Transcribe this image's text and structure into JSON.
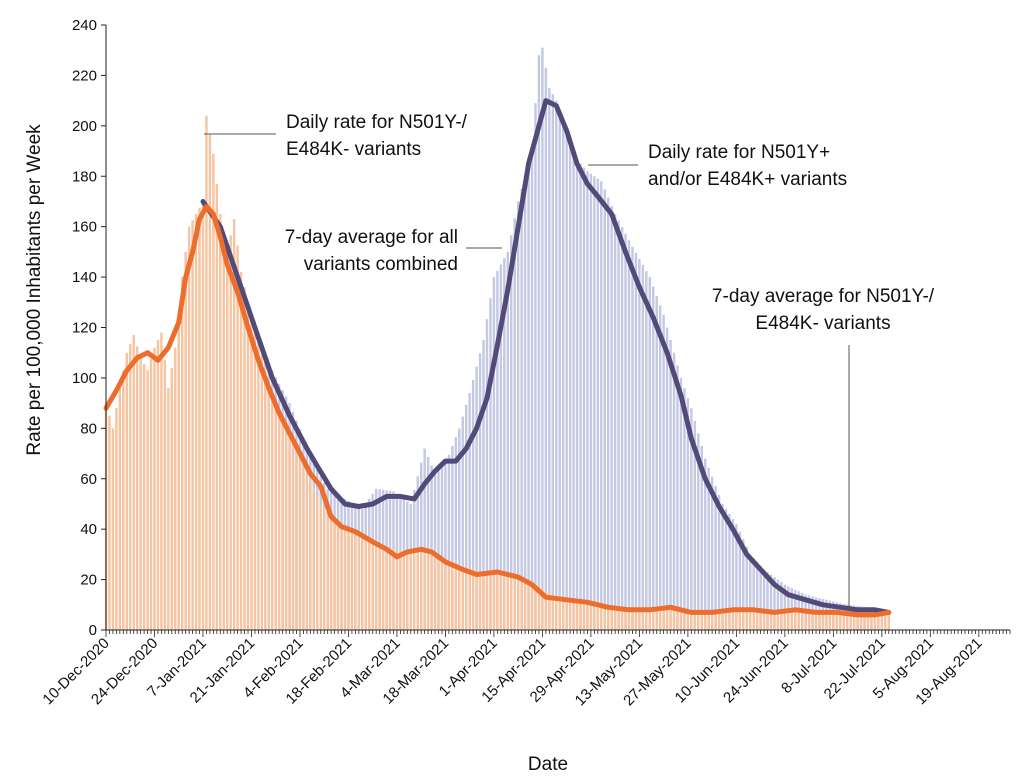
{
  "chart_data": {
    "type": "bar",
    "title": "",
    "xlabel": "Date",
    "ylabel": "Rate per 100,000 Inhabitants per Week",
    "ylim": [
      0,
      240
    ],
    "yticks": [
      0,
      20,
      40,
      60,
      80,
      100,
      120,
      140,
      160,
      180,
      200,
      220,
      240
    ],
    "x_range": [
      "2020-12-10",
      "2021-08-28"
    ],
    "x_tick_labels": [
      "10-Dec-2020",
      "24-Dec-2020",
      "7-Jan-2021",
      "21-Jan-2021",
      "4-Feb-2021",
      "18-Feb-2021",
      "4-Mar-2021",
      "18-Mar-2021",
      "1-Apr-2021",
      "15-Apr-2021",
      "29-Apr-2021",
      "13-May-2021",
      "27-May-2021",
      "10-Jun-2021",
      "24-Jun-2021",
      "8-Jul-2021",
      "22-Jul-2021",
      "5-Aug-2021",
      "19-Aug-2021"
    ],
    "grid": false,
    "colors": {
      "bars_all": "#c5c8e3",
      "bars_orig": "#f6c4a0",
      "avg_all": "#524a78",
      "avg_orig": "#ec6d2c"
    },
    "series": [
      {
        "name": "Daily rate for N501Y+ and/or E484K+ variants",
        "kind": "bar",
        "points": [
          [
            "2021-01-25",
            108
          ],
          [
            "2021-02-01",
            90
          ],
          [
            "2021-02-08",
            66
          ],
          [
            "2021-02-12",
            56
          ],
          [
            "2021-02-17",
            52
          ],
          [
            "2021-02-22",
            48
          ],
          [
            "2021-02-26",
            56
          ],
          [
            "2021-03-03",
            55
          ],
          [
            "2021-03-08",
            50
          ],
          [
            "2021-03-12",
            72
          ],
          [
            "2021-03-15",
            62
          ],
          [
            "2021-03-18",
            66
          ],
          [
            "2021-03-22",
            80
          ],
          [
            "2021-03-25",
            94
          ],
          [
            "2021-03-29",
            115
          ],
          [
            "2021-04-01",
            140
          ],
          [
            "2021-04-05",
            150
          ],
          [
            "2021-04-08",
            170
          ],
          [
            "2021-04-12",
            190
          ],
          [
            "2021-04-14",
            228
          ],
          [
            "2021-04-15",
            231
          ],
          [
            "2021-04-17",
            215
          ],
          [
            "2021-04-19",
            210
          ],
          [
            "2021-04-21",
            200
          ],
          [
            "2021-04-24",
            188
          ],
          [
            "2021-04-28",
            182
          ],
          [
            "2021-05-02",
            178
          ],
          [
            "2021-05-06",
            165
          ],
          [
            "2021-05-11",
            152
          ],
          [
            "2021-05-16",
            140
          ],
          [
            "2021-05-20",
            125
          ],
          [
            "2021-05-25",
            100
          ],
          [
            "2021-05-28",
            88
          ],
          [
            "2021-06-01",
            68
          ],
          [
            "2021-06-06",
            50
          ],
          [
            "2021-06-10",
            42
          ],
          [
            "2021-06-14",
            30
          ],
          [
            "2021-06-18",
            24
          ],
          [
            "2021-06-24",
            18
          ],
          [
            "2021-06-30",
            14
          ],
          [
            "2021-07-06",
            12
          ],
          [
            "2021-07-12",
            10
          ],
          [
            "2021-07-18",
            9
          ],
          [
            "2021-07-24",
            8
          ]
        ]
      },
      {
        "name": "Daily rate for N501Y-/ E484K- variants",
        "kind": "bar",
        "points": [
          [
            "2020-12-10",
            90
          ],
          [
            "2020-12-12",
            80
          ],
          [
            "2020-12-14",
            96
          ],
          [
            "2020-12-16",
            110
          ],
          [
            "2020-12-18",
            117
          ],
          [
            "2020-12-20",
            108
          ],
          [
            "2020-12-22",
            103
          ],
          [
            "2020-12-24",
            112
          ],
          [
            "2020-12-26",
            118
          ],
          [
            "2020-12-28",
            96
          ],
          [
            "2020-12-30",
            112
          ],
          [
            "2021-01-01",
            140
          ],
          [
            "2021-01-03",
            160
          ],
          [
            "2021-01-05",
            165
          ],
          [
            "2021-01-07",
            170
          ],
          [
            "2021-01-08",
            204
          ],
          [
            "2021-01-10",
            189
          ],
          [
            "2021-01-12",
            165
          ],
          [
            "2021-01-14",
            150
          ],
          [
            "2021-01-16",
            163
          ],
          [
            "2021-01-18",
            142
          ],
          [
            "2021-01-20",
            130
          ],
          [
            "2021-01-22",
            120
          ],
          [
            "2021-01-24",
            110
          ],
          [
            "2021-01-26",
            98
          ],
          [
            "2021-01-28",
            88
          ],
          [
            "2021-01-31",
            80
          ],
          [
            "2021-02-03",
            70
          ],
          [
            "2021-02-06",
            62
          ],
          [
            "2021-02-10",
            50
          ],
          [
            "2021-02-14",
            44
          ],
          [
            "2021-02-18",
            40
          ],
          [
            "2021-02-22",
            38
          ],
          [
            "2021-02-26",
            35
          ],
          [
            "2021-03-03",
            32
          ],
          [
            "2021-03-08",
            31
          ],
          [
            "2021-03-14",
            30
          ],
          [
            "2021-03-20",
            26
          ],
          [
            "2021-03-26",
            24
          ],
          [
            "2021-04-01",
            22
          ],
          [
            "2021-04-07",
            21
          ],
          [
            "2021-04-13",
            18
          ],
          [
            "2021-04-19",
            13
          ],
          [
            "2021-04-25",
            11
          ],
          [
            "2021-05-01",
            10
          ],
          [
            "2021-05-07",
            9
          ],
          [
            "2021-05-13",
            8
          ],
          [
            "2021-05-19",
            8
          ],
          [
            "2021-05-25",
            8
          ],
          [
            "2021-05-31",
            7
          ],
          [
            "2021-06-06",
            8
          ],
          [
            "2021-06-12",
            8
          ],
          [
            "2021-06-18",
            8
          ],
          [
            "2021-06-24",
            8
          ],
          [
            "2021-06-30",
            8
          ],
          [
            "2021-07-06",
            7
          ],
          [
            "2021-07-12",
            7
          ],
          [
            "2021-07-18",
            7
          ],
          [
            "2021-07-24",
            7
          ]
        ]
      },
      {
        "name": "7-day average for all variants combined",
        "kind": "line",
        "points": [
          [
            "2021-01-07",
            170
          ],
          [
            "2021-01-12",
            160
          ],
          [
            "2021-01-17",
            140
          ],
          [
            "2021-01-22",
            120
          ],
          [
            "2021-01-27",
            100
          ],
          [
            "2021-02-01",
            85
          ],
          [
            "2021-02-06",
            72
          ],
          [
            "2021-02-09",
            65
          ],
          [
            "2021-02-13",
            56
          ],
          [
            "2021-02-17",
            50
          ],
          [
            "2021-02-21",
            49
          ],
          [
            "2021-02-25",
            50
          ],
          [
            "2021-03-01",
            53
          ],
          [
            "2021-03-05",
            53
          ],
          [
            "2021-03-09",
            52
          ],
          [
            "2021-03-12",
            58
          ],
          [
            "2021-03-15",
            63
          ],
          [
            "2021-03-18",
            67
          ],
          [
            "2021-03-21",
            67
          ],
          [
            "2021-03-24",
            72
          ],
          [
            "2021-03-27",
            80
          ],
          [
            "2021-03-30",
            92
          ],
          [
            "2021-04-02",
            113
          ],
          [
            "2021-04-05",
            135
          ],
          [
            "2021-04-08",
            160
          ],
          [
            "2021-04-11",
            185
          ],
          [
            "2021-04-14",
            200
          ],
          [
            "2021-04-16",
            210
          ],
          [
            "2021-04-19",
            208
          ],
          [
            "2021-04-22",
            198
          ],
          [
            "2021-04-25",
            185
          ],
          [
            "2021-04-28",
            177
          ],
          [
            "2021-05-01",
            172
          ],
          [
            "2021-05-05",
            165
          ],
          [
            "2021-05-09",
            150
          ],
          [
            "2021-05-13",
            136
          ],
          [
            "2021-05-17",
            124
          ],
          [
            "2021-05-21",
            110
          ],
          [
            "2021-05-25",
            93
          ],
          [
            "2021-05-28",
            76
          ],
          [
            "2021-06-01",
            60
          ],
          [
            "2021-06-05",
            49
          ],
          [
            "2021-06-09",
            40
          ],
          [
            "2021-06-13",
            30
          ],
          [
            "2021-06-17",
            24
          ],
          [
            "2021-06-21",
            18
          ],
          [
            "2021-06-25",
            14
          ],
          [
            "2021-06-30",
            12
          ],
          [
            "2021-07-05",
            10
          ],
          [
            "2021-07-10",
            9
          ],
          [
            "2021-07-15",
            8
          ],
          [
            "2021-07-20",
            8
          ],
          [
            "2021-07-24",
            7
          ]
        ]
      },
      {
        "name": "7-day average for N501Y-/ E484K- variants",
        "kind": "line",
        "points": [
          [
            "2020-12-10",
            88
          ],
          [
            "2020-12-13",
            95
          ],
          [
            "2020-12-16",
            103
          ],
          [
            "2020-12-19",
            108
          ],
          [
            "2020-12-22",
            110
          ],
          [
            "2020-12-25",
            107
          ],
          [
            "2020-12-28",
            112
          ],
          [
            "2020-12-31",
            122
          ],
          [
            "2021-01-02",
            140
          ],
          [
            "2021-01-04",
            150
          ],
          [
            "2021-01-06",
            163
          ],
          [
            "2021-01-08",
            168
          ],
          [
            "2021-01-10",
            165
          ],
          [
            "2021-01-12",
            156
          ],
          [
            "2021-01-14",
            145
          ],
          [
            "2021-01-17",
            134
          ],
          [
            "2021-01-20",
            120
          ],
          [
            "2021-01-23",
            107
          ],
          [
            "2021-01-26",
            96
          ],
          [
            "2021-01-29",
            86
          ],
          [
            "2021-02-01",
            78
          ],
          [
            "2021-02-04",
            70
          ],
          [
            "2021-02-07",
            62
          ],
          [
            "2021-02-10",
            57
          ],
          [
            "2021-02-13",
            45
          ],
          [
            "2021-02-16",
            41
          ],
          [
            "2021-02-20",
            39
          ],
          [
            "2021-02-25",
            35
          ],
          [
            "2021-03-01",
            32
          ],
          [
            "2021-03-04",
            29
          ],
          [
            "2021-03-07",
            31
          ],
          [
            "2021-03-11",
            32
          ],
          [
            "2021-03-14",
            31
          ],
          [
            "2021-03-18",
            27
          ],
          [
            "2021-03-23",
            24
          ],
          [
            "2021-03-27",
            22
          ],
          [
            "2021-04-02",
            23
          ],
          [
            "2021-04-08",
            21
          ],
          [
            "2021-04-12",
            18
          ],
          [
            "2021-04-16",
            13
          ],
          [
            "2021-04-22",
            12
          ],
          [
            "2021-04-28",
            11
          ],
          [
            "2021-05-04",
            9
          ],
          [
            "2021-05-10",
            8
          ],
          [
            "2021-05-16",
            8
          ],
          [
            "2021-05-22",
            9
          ],
          [
            "2021-05-28",
            7
          ],
          [
            "2021-06-03",
            7
          ],
          [
            "2021-06-09",
            8
          ],
          [
            "2021-06-15",
            8
          ],
          [
            "2021-06-21",
            7
          ],
          [
            "2021-06-27",
            8
          ],
          [
            "2021-07-03",
            7
          ],
          [
            "2021-07-09",
            7
          ],
          [
            "2021-07-15",
            6
          ],
          [
            "2021-07-20",
            6
          ],
          [
            "2021-07-24",
            7
          ]
        ]
      }
    ],
    "annotations": [
      {
        "name": "Daily rate for N501Y-/ E484K- variants",
        "lines": [
          "Daily rate for N501Y-/",
          "E484K- variants"
        ],
        "at": [
          "2021-01-08",
          204
        ]
      },
      {
        "name": "Daily rate for N501Y+ and/or E484K+ variants",
        "lines": [
          "Daily rate for N501Y+",
          "and/or E484K+ variants"
        ],
        "at": [
          "2021-04-28",
          185
        ]
      },
      {
        "name": "7-day average for all variants combined",
        "lines": [
          "7-day average for all",
          "variants combined"
        ],
        "at": [
          "2021-04-04",
          152
        ]
      },
      {
        "name": "7-day average for N501Y-/ E484K- variants",
        "lines": [
          "7-day average for N501Y-/",
          "E484K- variants"
        ],
        "at": [
          "2021-07-16",
          7
        ]
      }
    ]
  }
}
